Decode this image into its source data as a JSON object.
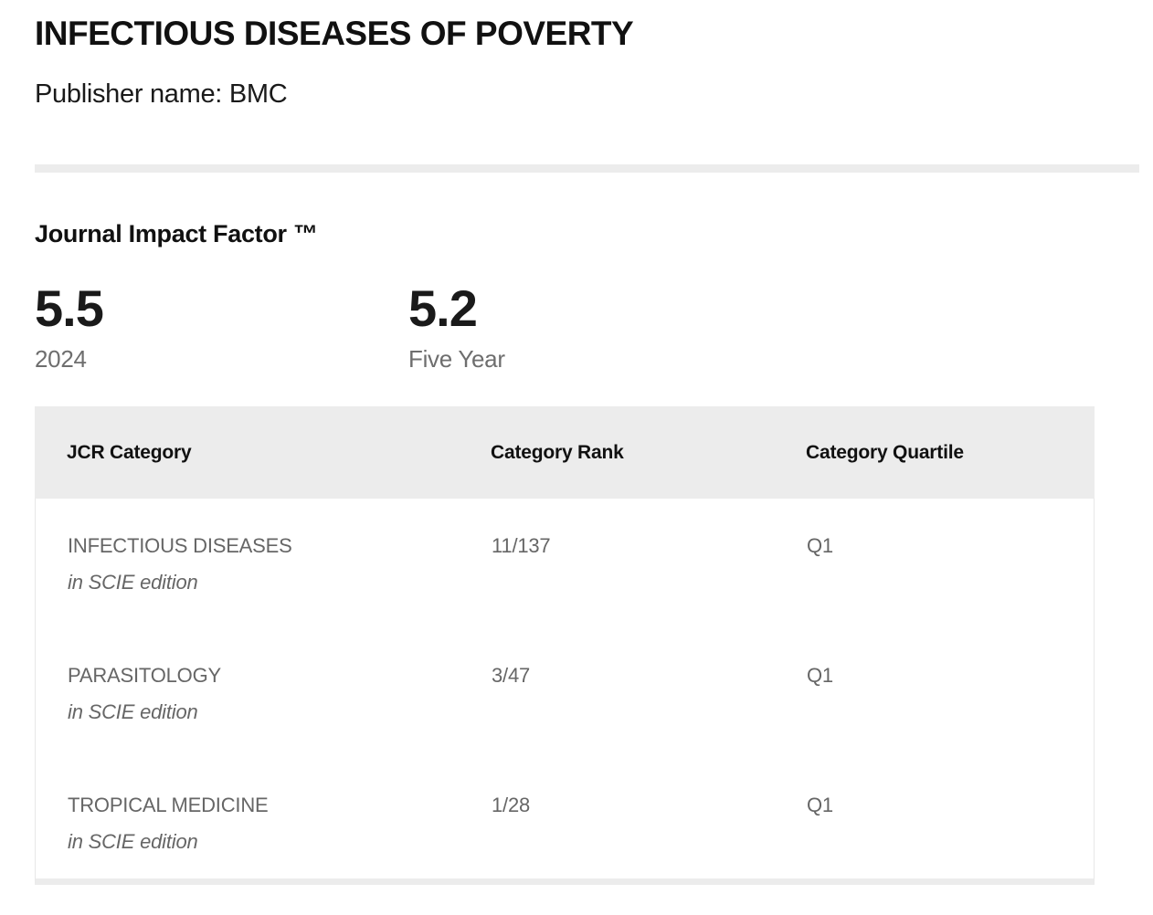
{
  "journal": {
    "title": "INFECTIOUS DISEASES OF POVERTY",
    "publisher_line": "Publisher name: BMC"
  },
  "impact_factor": {
    "heading": "Journal Impact Factor ™",
    "stats": [
      {
        "value": "5.5",
        "label": "2024"
      },
      {
        "value": "5.2",
        "label": "Five Year"
      }
    ]
  },
  "category_table": {
    "columns": [
      "JCR Category",
      "Category Rank",
      "Category Quartile"
    ],
    "rows": [
      {
        "category": "INFECTIOUS DISEASES",
        "edition": "in SCIE edition",
        "rank": "11/137",
        "quartile": "Q1"
      },
      {
        "category": "PARASITOLOGY",
        "edition": "in SCIE edition",
        "rank": "3/47",
        "quartile": "Q1"
      },
      {
        "category": "TROPICAL MEDICINE",
        "edition": "in SCIE edition",
        "rank": "1/28",
        "quartile": "Q1"
      }
    ]
  },
  "colors": {
    "divider_gray": "#ececec",
    "table_header_bg": "#ececec",
    "table_border": "#e8e8e8",
    "muted_text": "#6e6e6e",
    "row_text": "#666666",
    "heading_text": "#111111"
  }
}
